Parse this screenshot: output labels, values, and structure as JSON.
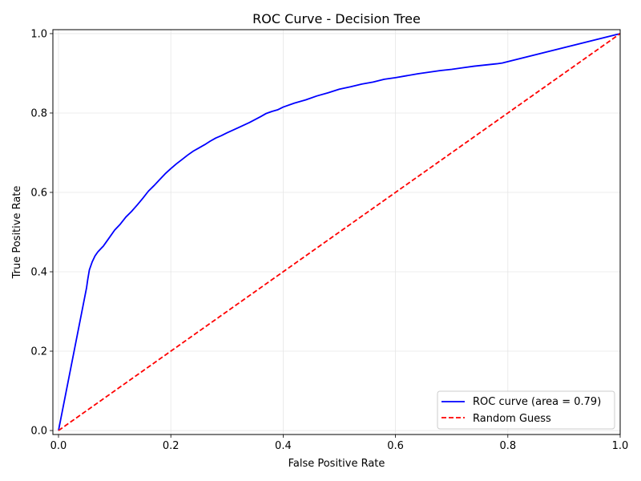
{
  "chart_data": {
    "type": "line",
    "title": "ROC Curve - Decision Tree",
    "xlabel": "False Positive Rate",
    "ylabel": "True Positive Rate",
    "xlim": [
      -0.01,
      1.0
    ],
    "ylim": [
      -0.01,
      1.01
    ],
    "grid": true,
    "legend_position": "lower-right",
    "x_ticks": [
      {
        "value": 0.0,
        "label": "0.0"
      },
      {
        "value": 0.2,
        "label": "0.2"
      },
      {
        "value": 0.4,
        "label": "0.4"
      },
      {
        "value": 0.6,
        "label": "0.6"
      },
      {
        "value": 0.8,
        "label": "0.8"
      },
      {
        "value": 1.0,
        "label": "1.0"
      }
    ],
    "y_ticks": [
      {
        "value": 0.0,
        "label": "0.0"
      },
      {
        "value": 0.2,
        "label": "0.2"
      },
      {
        "value": 0.4,
        "label": "0.4"
      },
      {
        "value": 0.6,
        "label": "0.6"
      },
      {
        "value": 0.8,
        "label": "0.8"
      },
      {
        "value": 1.0,
        "label": "1.0"
      }
    ],
    "series": [
      {
        "name": "ROC curve (area = 0.79)",
        "color": "#0000ff",
        "style": "solid",
        "x": [
          0.0,
          0.05,
          0.052,
          0.055,
          0.06,
          0.065,
          0.07,
          0.08,
          0.09,
          0.1,
          0.11,
          0.12,
          0.13,
          0.14,
          0.15,
          0.16,
          0.17,
          0.18,
          0.19,
          0.2,
          0.21,
          0.22,
          0.23,
          0.24,
          0.25,
          0.26,
          0.27,
          0.28,
          0.29,
          0.3,
          0.32,
          0.34,
          0.36,
          0.37,
          0.38,
          0.39,
          0.4,
          0.42,
          0.44,
          0.46,
          0.48,
          0.5,
          0.52,
          0.54,
          0.56,
          0.58,
          0.6,
          0.62,
          0.64,
          0.66,
          0.68,
          0.7,
          0.72,
          0.74,
          0.76,
          0.78,
          0.79,
          1.0
        ],
        "y": [
          0.0,
          0.36,
          0.38,
          0.405,
          0.425,
          0.44,
          0.45,
          0.465,
          0.485,
          0.505,
          0.52,
          0.538,
          0.552,
          0.568,
          0.585,
          0.603,
          0.617,
          0.632,
          0.647,
          0.66,
          0.672,
          0.683,
          0.694,
          0.704,
          0.712,
          0.72,
          0.729,
          0.737,
          0.743,
          0.75,
          0.763,
          0.776,
          0.791,
          0.799,
          0.804,
          0.808,
          0.815,
          0.825,
          0.833,
          0.843,
          0.851,
          0.86,
          0.866,
          0.873,
          0.878,
          0.885,
          0.889,
          0.894,
          0.899,
          0.903,
          0.907,
          0.91,
          0.914,
          0.918,
          0.921,
          0.924,
          0.926,
          1.0
        ]
      },
      {
        "name": "Random Guess",
        "color": "#ff0000",
        "style": "dashed",
        "x": [
          0.0,
          1.0
        ],
        "y": [
          0.0,
          1.0
        ]
      }
    ]
  }
}
